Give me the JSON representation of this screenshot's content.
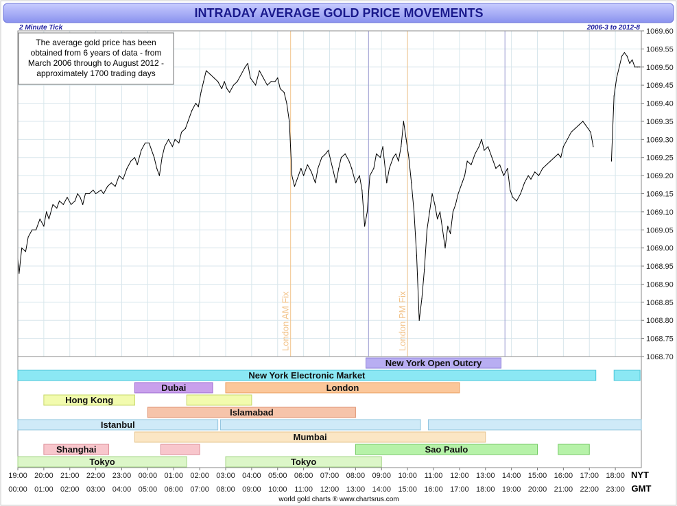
{
  "title": "INTRADAY AVERAGE GOLD PRICE MOVEMENTS",
  "tick_label": "2 Minute Tick",
  "date_range": "2006-3 to 2012-8",
  "note_lines": [
    "The average gold price has been",
    "obtained from 6 years of data - from",
    "March 2006 through to August 2012 -",
    "approximately 1700 trading days"
  ],
  "footer": "world gold charts ® www.chartsrus.com",
  "nyt_label": "NYT",
  "gmt_label": "GMT",
  "colors": {
    "title_bg_top": "#c8ccff",
    "title_bg_bottom": "#8a92ee",
    "title_text": "#1a1a8c",
    "subheader_text": "#1a1a9c",
    "grid": "#d8e6ec",
    "line": "#000000",
    "fix_line": "#f2c38a",
    "session_line": "#9a9ad0"
  },
  "chart_data": {
    "type": "line",
    "ylim": [
      1068.7,
      1069.6
    ],
    "y_ticks": [
      "1068.70",
      "1068.75",
      "1068.80",
      "1068.85",
      "1068.90",
      "1068.95",
      "1069.00",
      "1069.05",
      "1069.10",
      "1069.15",
      "1069.20",
      "1069.25",
      "1069.30",
      "1069.35",
      "1069.40",
      "1069.45",
      "1069.50",
      "1069.55",
      "1069.60"
    ],
    "nyt_ticks": [
      "19:00",
      "20:00",
      "21:00",
      "22:00",
      "23:00",
      "00:00",
      "01:00",
      "02:00",
      "03:00",
      "04:00",
      "05:00",
      "06:00",
      "07:00",
      "08:00",
      "09:00",
      "10:00",
      "11:00",
      "12:00",
      "13:00",
      "14:00",
      "15:00",
      "16:00",
      "17:00",
      "18:00"
    ],
    "gmt_ticks": [
      "00:00",
      "01:00",
      "02:00",
      "03:00",
      "04:00",
      "05:00",
      "06:00",
      "07:00",
      "08:00",
      "09:00",
      "10:00",
      "11:00",
      "12:00",
      "13:00",
      "14:00",
      "15:00",
      "16:00",
      "17:00",
      "18:00",
      "19:00",
      "20:00",
      "21:00",
      "22:00",
      "23:00"
    ],
    "x_unit": "hours after 00:00 GMT",
    "vertical_markers": [
      {
        "label": "London AM Fix",
        "x": 10.5,
        "style": "fix"
      },
      {
        "label": "London PM Fix",
        "x": 15.0,
        "style": "fix"
      },
      {
        "label": "",
        "x": 13.5,
        "style": "session"
      },
      {
        "label": "",
        "x": 18.75,
        "style": "session"
      }
    ],
    "series": [
      {
        "points": [
          [
            0.0,
            1068.97
          ],
          [
            0.05,
            1068.93
          ],
          [
            0.15,
            1069.0
          ],
          [
            0.3,
            1068.99
          ],
          [
            0.4,
            1069.03
          ],
          [
            0.55,
            1069.05
          ],
          [
            0.7,
            1069.05
          ],
          [
            0.85,
            1069.08
          ],
          [
            1.0,
            1069.06
          ],
          [
            1.1,
            1069.1
          ],
          [
            1.2,
            1069.08
          ],
          [
            1.35,
            1069.12
          ],
          [
            1.5,
            1069.11
          ],
          [
            1.6,
            1069.13
          ],
          [
            1.75,
            1069.12
          ],
          [
            1.9,
            1069.14
          ],
          [
            2.05,
            1069.12
          ],
          [
            2.2,
            1069.13
          ],
          [
            2.3,
            1069.15
          ],
          [
            2.4,
            1069.14
          ],
          [
            2.5,
            1069.12
          ],
          [
            2.6,
            1069.15
          ],
          [
            2.75,
            1069.15
          ],
          [
            2.9,
            1069.16
          ],
          [
            3.0,
            1069.15
          ],
          [
            3.2,
            1069.16
          ],
          [
            3.3,
            1069.15
          ],
          [
            3.45,
            1069.17
          ],
          [
            3.6,
            1069.18
          ],
          [
            3.75,
            1069.17
          ],
          [
            3.9,
            1069.2
          ],
          [
            4.05,
            1069.19
          ],
          [
            4.2,
            1069.22
          ],
          [
            4.35,
            1069.24
          ],
          [
            4.5,
            1069.25
          ],
          [
            4.6,
            1069.23
          ],
          [
            4.75,
            1069.27
          ],
          [
            4.9,
            1069.29
          ],
          [
            5.05,
            1069.29
          ],
          [
            5.15,
            1069.27
          ],
          [
            5.25,
            1069.25
          ],
          [
            5.35,
            1069.22
          ],
          [
            5.45,
            1069.2
          ],
          [
            5.55,
            1069.25
          ],
          [
            5.65,
            1069.28
          ],
          [
            5.8,
            1069.3
          ],
          [
            5.95,
            1069.28
          ],
          [
            6.05,
            1069.3
          ],
          [
            6.2,
            1069.29
          ],
          [
            6.3,
            1069.32
          ],
          [
            6.45,
            1069.33
          ],
          [
            6.55,
            1069.35
          ],
          [
            6.7,
            1069.38
          ],
          [
            6.85,
            1069.4
          ],
          [
            6.95,
            1069.39
          ],
          [
            7.05,
            1069.43
          ],
          [
            7.15,
            1069.46
          ],
          [
            7.25,
            1069.49
          ],
          [
            7.4,
            1069.48
          ],
          [
            7.55,
            1069.47
          ],
          [
            7.7,
            1069.46
          ],
          [
            7.85,
            1069.44
          ],
          [
            7.95,
            1069.46
          ],
          [
            8.05,
            1069.44
          ],
          [
            8.15,
            1069.43
          ],
          [
            8.3,
            1069.45
          ],
          [
            8.45,
            1069.46
          ],
          [
            8.6,
            1069.48
          ],
          [
            8.75,
            1069.5
          ],
          [
            8.85,
            1069.51
          ],
          [
            8.95,
            1069.47
          ],
          [
            9.05,
            1069.46
          ],
          [
            9.15,
            1069.45
          ],
          [
            9.3,
            1069.49
          ],
          [
            9.45,
            1069.47
          ],
          [
            9.6,
            1069.45
          ],
          [
            9.75,
            1069.46
          ],
          [
            9.9,
            1069.46
          ],
          [
            10.0,
            1069.47
          ],
          [
            10.1,
            1069.44
          ],
          [
            10.25,
            1069.43
          ],
          [
            10.35,
            1069.4
          ],
          [
            10.45,
            1069.35
          ],
          [
            10.55,
            1069.2
          ],
          [
            10.65,
            1069.17
          ],
          [
            10.8,
            1069.2
          ],
          [
            10.9,
            1069.22
          ],
          [
            11.0,
            1069.2
          ],
          [
            11.15,
            1069.23
          ],
          [
            11.3,
            1069.21
          ],
          [
            11.45,
            1069.18
          ],
          [
            11.55,
            1069.22
          ],
          [
            11.7,
            1069.25
          ],
          [
            11.85,
            1069.26
          ],
          [
            11.95,
            1069.27
          ],
          [
            12.05,
            1069.24
          ],
          [
            12.15,
            1069.21
          ],
          [
            12.25,
            1069.18
          ],
          [
            12.35,
            1069.22
          ],
          [
            12.45,
            1069.25
          ],
          [
            12.6,
            1069.26
          ],
          [
            12.75,
            1069.24
          ],
          [
            12.85,
            1069.22
          ],
          [
            13.0,
            1069.18
          ],
          [
            13.15,
            1069.2
          ],
          [
            13.25,
            1069.16
          ],
          [
            13.35,
            1069.06
          ],
          [
            13.45,
            1069.1
          ],
          [
            13.55,
            1069.2
          ],
          [
            13.7,
            1069.22
          ],
          [
            13.8,
            1069.26
          ],
          [
            13.95,
            1069.25
          ],
          [
            14.05,
            1069.28
          ],
          [
            14.2,
            1069.18
          ],
          [
            14.3,
            1069.22
          ],
          [
            14.45,
            1069.25
          ],
          [
            14.55,
            1069.26
          ],
          [
            14.65,
            1069.24
          ],
          [
            14.75,
            1069.28
          ],
          [
            14.85,
            1069.35
          ],
          [
            14.95,
            1069.3
          ],
          [
            15.05,
            1069.25
          ],
          [
            15.15,
            1069.18
          ],
          [
            15.25,
            1069.1
          ],
          [
            15.35,
            1068.98
          ],
          [
            15.45,
            1068.8
          ],
          [
            15.55,
            1068.86
          ],
          [
            15.65,
            1068.94
          ],
          [
            15.75,
            1069.05
          ],
          [
            15.85,
            1069.1
          ],
          [
            15.95,
            1069.15
          ],
          [
            16.05,
            1069.12
          ],
          [
            16.15,
            1069.08
          ],
          [
            16.25,
            1069.1
          ],
          [
            16.35,
            1069.05
          ],
          [
            16.45,
            1069.0
          ],
          [
            16.55,
            1069.06
          ],
          [
            16.65,
            1069.04
          ],
          [
            16.75,
            1069.1
          ],
          [
            16.85,
            1069.12
          ],
          [
            16.95,
            1069.15
          ],
          [
            17.1,
            1069.18
          ],
          [
            17.2,
            1069.2
          ],
          [
            17.3,
            1069.24
          ],
          [
            17.45,
            1069.23
          ],
          [
            17.6,
            1069.26
          ],
          [
            17.75,
            1069.28
          ],
          [
            17.85,
            1069.3
          ],
          [
            17.95,
            1069.27
          ],
          [
            18.1,
            1069.28
          ],
          [
            18.25,
            1069.25
          ],
          [
            18.4,
            1069.22
          ],
          [
            18.55,
            1069.23
          ],
          [
            18.7,
            1069.2
          ],
          [
            18.85,
            1069.22
          ],
          [
            18.95,
            1069.16
          ],
          [
            19.05,
            1069.14
          ],
          [
            19.2,
            1069.13
          ],
          [
            19.35,
            1069.15
          ],
          [
            19.5,
            1069.18
          ],
          [
            19.65,
            1069.2
          ],
          [
            19.75,
            1069.19
          ],
          [
            19.9,
            1069.21
          ],
          [
            20.05,
            1069.2
          ],
          [
            20.2,
            1069.22
          ],
          [
            20.35,
            1069.23
          ],
          [
            20.5,
            1069.24
          ],
          [
            20.65,
            1069.25
          ],
          [
            20.8,
            1069.26
          ],
          [
            20.9,
            1069.25
          ],
          [
            21.0,
            1069.28
          ],
          [
            21.15,
            1069.3
          ],
          [
            21.3,
            1069.32
          ],
          [
            21.45,
            1069.33
          ],
          [
            21.6,
            1069.34
          ],
          [
            21.75,
            1069.35
          ],
          [
            21.85,
            1069.34
          ],
          [
            21.95,
            1069.33
          ],
          [
            22.05,
            1069.32
          ],
          [
            22.15,
            1069.28
          ]
        ]
      },
      {
        "points": [
          [
            22.85,
            1069.24
          ],
          [
            22.95,
            1069.42
          ],
          [
            23.05,
            1069.47
          ],
          [
            23.15,
            1069.5
          ],
          [
            23.25,
            1069.53
          ],
          [
            23.35,
            1069.54
          ],
          [
            23.45,
            1069.53
          ],
          [
            23.55,
            1069.51
          ],
          [
            23.65,
            1069.52
          ],
          [
            23.75,
            1069.5
          ],
          [
            23.85,
            1069.5
          ],
          [
            23.95,
            1069.5
          ]
        ]
      }
    ],
    "sessions": [
      {
        "label": "New York Open Outcry",
        "row": 0,
        "bars": [
          [
            13.4,
            18.6
          ]
        ],
        "fill": "#b8aef2",
        "stroke": "#8d7fd8"
      },
      {
        "label": "New York Electronic Market",
        "row": 1,
        "bars": [
          [
            0.0,
            22.25
          ],
          [
            22.95,
            23.95
          ]
        ],
        "fill": "#8be8f4",
        "stroke": "#45c5d8"
      },
      {
        "label": "Dubai",
        "row": 2,
        "bars": [
          [
            4.5,
            7.5
          ]
        ],
        "fill": "#c9a0ec",
        "stroke": "#9d6ad0"
      },
      {
        "label": "London",
        "row": 2,
        "bars": [
          [
            8.0,
            17.0
          ]
        ],
        "fill": "#fbc79a",
        "stroke": "#e99c5c"
      },
      {
        "label": "Hong Kong",
        "row": 3,
        "bars": [
          [
            1.0,
            4.5
          ],
          [
            6.5,
            9.0
          ]
        ],
        "fill": "#f2fbae",
        "stroke": "#c7d86a"
      },
      {
        "label": "Islamabad",
        "row": 4,
        "bars": [
          [
            5.0,
            13.0
          ]
        ],
        "fill": "#f6c4aa",
        "stroke": "#df9270"
      },
      {
        "label": "Istanbul",
        "row": 5,
        "bars": [
          [
            0.0,
            7.7
          ],
          [
            7.8,
            15.5
          ],
          [
            15.8,
            24.0
          ]
        ],
        "fill": "#cfeaf8",
        "stroke": "#8fc4de"
      },
      {
        "label": "Mumbai",
        "row": 6,
        "bars": [
          [
            4.5,
            18.0
          ]
        ],
        "fill": "#fbe6c4",
        "stroke": "#e6c48e"
      },
      {
        "label": "Shanghai",
        "row": 7,
        "bars": [
          [
            1.0,
            3.5
          ],
          [
            5.5,
            7.0
          ]
        ],
        "fill": "#f8c6cc",
        "stroke": "#dc8e98"
      },
      {
        "label": "Sao Paulo",
        "row": 7,
        "bars": [
          [
            13.0,
            20.0
          ],
          [
            20.8,
            22.0
          ]
        ],
        "fill": "#b6f2a8",
        "stroke": "#74c964"
      },
      {
        "label": "Tokyo",
        "row": 8,
        "bars": [
          [
            0.0,
            6.5
          ]
        ],
        "fill": "#dcf6c8",
        "stroke": "#a6d488"
      },
      {
        "label": "Tokyo",
        "row": 8,
        "bars": [
          [
            8.0,
            14.0
          ]
        ],
        "fill": "#dcf6c8",
        "stroke": "#a6d488"
      }
    ]
  }
}
